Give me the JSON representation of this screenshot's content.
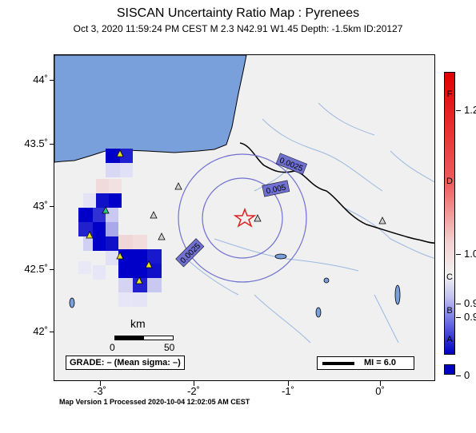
{
  "header": {
    "title": "SISCAN Uncertainty Ratio Map : Pyrenees",
    "subtitle": "Oct  3, 2020 11:59:24 PM CEST   M 2.3    N42.91 W1.45    Depth: -1.5km    ID:20127"
  },
  "axes": {
    "y_ticks": [
      "44˚",
      "43.5˚",
      "43˚",
      "42.5˚",
      "42˚"
    ],
    "x_ticks": [
      "-3˚",
      "-2˚",
      "-1˚",
      "0˚"
    ]
  },
  "epicenter": {
    "lat": 42.91,
    "lon": -1.45,
    "symbol": "star",
    "color": "#e02020"
  },
  "contours": {
    "labels": [
      "0.0025",
      "0.005",
      "0.0025"
    ]
  },
  "scale": {
    "unit": "km",
    "min_label": "0",
    "max_label": "50"
  },
  "grade": {
    "text": "GRADE: – (Mean sigma: –)"
  },
  "mi": {
    "text": "MI = 6.0"
  },
  "colorbar": {
    "letters": [
      "F",
      "D",
      "C",
      "B",
      "A"
    ],
    "values": [
      "1.2",
      "1.0",
      "0.9",
      "0.9",
      "0"
    ]
  },
  "footer": {
    "text": "Map Version 1 Processed 2020-10-04 12:02:05 AM CEST"
  },
  "colors": {
    "sea": "#7aa0dc",
    "land": "#f0f0f0",
    "high_uncertainty": "#0000c8",
    "contour": "#7070d0",
    "border": "#000000",
    "rivers": "#9ab8e0"
  }
}
